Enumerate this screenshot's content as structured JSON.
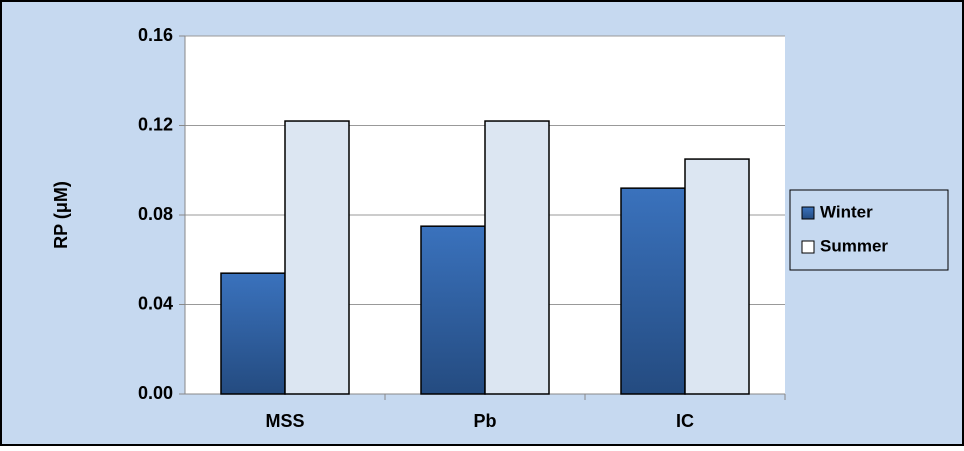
{
  "chart_data": {
    "type": "bar",
    "y_label": "RP (μM)",
    "categories": [
      "MSS",
      "Pb",
      "IC"
    ],
    "series": [
      {
        "name": "Winter",
        "color": "#3569ad",
        "values": [
          0.054,
          0.075,
          0.092
        ]
      },
      {
        "name": "Summer",
        "color": "#dce6f2",
        "values": [
          0.122,
          0.122,
          0.105
        ]
      }
    ],
    "ylim": [
      0,
      0.16
    ],
    "yticks": [
      {
        "value": 0,
        "label": "0.00"
      },
      {
        "value": 0.04,
        "label": "0.04"
      },
      {
        "value": 0.08,
        "label": "0.08"
      },
      {
        "value": 0.12,
        "label": "0.12"
      },
      {
        "value": 0.16,
        "label": "0.16"
      }
    ],
    "grid": true,
    "legend": "right"
  }
}
